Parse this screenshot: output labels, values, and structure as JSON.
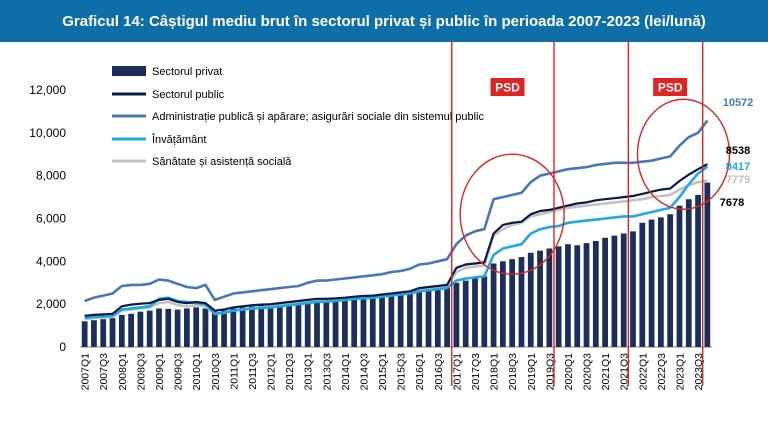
{
  "page": {
    "title": "Graficul 14: Câștigul mediu brut în sectorul privat și public în perioada 2007-2023 (lei/lună)"
  },
  "chart_data": {
    "type": "bar",
    "ylim": [
      0,
      12000
    ],
    "yticks": [
      0,
      2000,
      4000,
      6000,
      8000,
      10000,
      12000
    ],
    "ytick_labels": [
      "0",
      "2,000",
      "4,000",
      "6,000",
      "8,000",
      "10,000",
      "12,000"
    ],
    "categories": [
      "2007Q1",
      "2007Q2",
      "2007Q3",
      "2007Q4",
      "2008Q1",
      "2008Q2",
      "2008Q3",
      "2008Q4",
      "2009Q1",
      "2009Q2",
      "2009Q3",
      "2009Q4",
      "2010Q1",
      "2010Q2",
      "2010Q3",
      "2010Q4",
      "2011Q1",
      "2011Q2",
      "2011Q3",
      "2011Q4",
      "2012Q1",
      "2012Q2",
      "2012Q3",
      "2012Q4",
      "2013Q1",
      "2013Q2",
      "2013Q3",
      "2013Q4",
      "2014Q1",
      "2014Q2",
      "2014Q3",
      "2014Q4",
      "2015Q1",
      "2015Q2",
      "2015Q3",
      "2015Q4",
      "2016Q1",
      "2016Q2",
      "2016Q3",
      "2016Q4",
      "2017Q1",
      "2017Q2",
      "2017Q3",
      "2017Q4",
      "2018Q1",
      "2018Q2",
      "2018Q3",
      "2018Q4",
      "2019Q1",
      "2019Q2",
      "2019Q3",
      "2019Q4",
      "2020Q1",
      "2020Q2",
      "2020Q3",
      "2020Q4",
      "2021Q1",
      "2021Q2",
      "2021Q3",
      "2021Q4",
      "2022Q1",
      "2022Q2",
      "2022Q3",
      "2022Q4",
      "2023Q1",
      "2023Q2",
      "2023Q3",
      "2023Q4"
    ],
    "xtick_labels": [
      "2007Q1",
      "2007Q3",
      "2008Q1",
      "2008Q3",
      "2009Q1",
      "2009Q3",
      "2010Q1",
      "2010Q3",
      "2011Q1",
      "2011Q3",
      "2012Q1",
      "2012Q3",
      "2013Q1",
      "2013Q3",
      "2014Q1",
      "2014Q3",
      "2015Q1",
      "2015Q3",
      "2016Q1",
      "2016Q3",
      "2017Q1",
      "2017Q3",
      "2018Q1",
      "2018Q3",
      "2019Q1",
      "2019Q3",
      "2020Q1",
      "2020Q3",
      "2021Q1",
      "2021Q3",
      "2022Q1",
      "2022Q3",
      "2023Q1",
      "2023Q3"
    ],
    "series": [
      {
        "name": "Sectorul privat",
        "type": "bar",
        "color": "#1b2f5a",
        "values": [
          1200,
          1250,
          1300,
          1350,
          1500,
          1550,
          1650,
          1700,
          1800,
          1780,
          1750,
          1800,
          1850,
          1800,
          1650,
          1700,
          1800,
          1850,
          1900,
          1950,
          2000,
          2050,
          2100,
          2100,
          2150,
          2200,
          2250,
          2250,
          2300,
          2350,
          2380,
          2400,
          2450,
          2500,
          2550,
          2600,
          2700,
          2750,
          2800,
          2850,
          3000,
          3100,
          3200,
          3300,
          3900,
          4000,
          4100,
          4200,
          4400,
          4500,
          4600,
          4700,
          4800,
          4750,
          4850,
          4950,
          5100,
          5200,
          5300,
          5400,
          5800,
          5950,
          6050,
          6200,
          6600,
          6900,
          7100,
          7678
        ]
      },
      {
        "name": "Sectorul public",
        "type": "line",
        "color": "#0b1a4a",
        "values": [
          1450,
          1500,
          1520,
          1550,
          1900,
          1980,
          2020,
          2050,
          2200,
          2250,
          2100,
          2050,
          2100,
          2050,
          1700,
          1750,
          1850,
          1900,
          1950,
          1980,
          2000,
          2050,
          2100,
          2150,
          2200,
          2250,
          2250,
          2270,
          2300,
          2350,
          2380,
          2400,
          2450,
          2500,
          2550,
          2600,
          2750,
          2800,
          2850,
          2900,
          3700,
          3850,
          3900,
          3950,
          5300,
          5700,
          5800,
          5850,
          6200,
          6350,
          6400,
          6500,
          6600,
          6700,
          6750,
          6850,
          6900,
          6950,
          7000,
          7050,
          7150,
          7250,
          7350,
          7400,
          7750,
          8050,
          8300,
          8538
        ]
      },
      {
        "name": "Administrație publică și apărare; asigurări sociale din sistemul public",
        "type": "line",
        "color": "#4a77b4",
        "values": [
          2150,
          2300,
          2400,
          2500,
          2850,
          2900,
          2900,
          2950,
          3150,
          3100,
          2950,
          2800,
          2750,
          2900,
          2200,
          2350,
          2500,
          2550,
          2600,
          2650,
          2700,
          2750,
          2800,
          2850,
          3000,
          3100,
          3100,
          3150,
          3200,
          3250,
          3300,
          3350,
          3400,
          3500,
          3550,
          3650,
          3850,
          3900,
          4000,
          4100,
          4800,
          5200,
          5400,
          5500,
          6900,
          7000,
          7100,
          7200,
          7700,
          8000,
          8100,
          8200,
          8300,
          8350,
          8400,
          8500,
          8550,
          8600,
          8600,
          8600,
          8650,
          8700,
          8800,
          8900,
          9400,
          9800,
          10000,
          10572
        ]
      },
      {
        "name": "Învățământ",
        "type": "line",
        "color": "#1fa9e1",
        "values": [
          1350,
          1400,
          1420,
          1450,
          1750,
          1800,
          1850,
          1900,
          2250,
          2300,
          2150,
          2100,
          2050,
          2000,
          1550,
          1600,
          1700,
          1750,
          1800,
          1820,
          1850,
          1900,
          1950,
          2000,
          2050,
          2100,
          2120,
          2150,
          2200,
          2250,
          2270,
          2300,
          2350,
          2400,
          2450,
          2500,
          2600,
          2650,
          2700,
          2750,
          3100,
          3200,
          3250,
          3300,
          4300,
          4600,
          4700,
          4800,
          5300,
          5500,
          5600,
          5650,
          5800,
          5850,
          5900,
          5950,
          6000,
          6050,
          6100,
          6100,
          6200,
          6300,
          6400,
          6500,
          7000,
          7600,
          8100,
          8417
        ]
      },
      {
        "name": "Sănătate și asistență socială",
        "type": "line",
        "color": "#c2c2c2",
        "values": [
          1300,
          1350,
          1380,
          1400,
          1700,
          1750,
          1800,
          1850,
          2050,
          2100,
          1950,
          1900,
          1950,
          1900,
          1550,
          1600,
          1700,
          1750,
          1800,
          1850,
          1900,
          1950,
          2000,
          2050,
          2100,
          2150,
          2180,
          2200,
          2250,
          2300,
          2320,
          2350,
          2400,
          2450,
          2500,
          2550,
          2650,
          2700,
          2750,
          2800,
          3500,
          3700,
          3750,
          3800,
          5200,
          5500,
          5700,
          5800,
          6100,
          6200,
          6300,
          6400,
          6500,
          6550,
          6600,
          6650,
          6700,
          6750,
          6800,
          6850,
          6900,
          7000,
          7050,
          7100,
          7350,
          7550,
          7700,
          7779
        ]
      }
    ],
    "end_labels": [
      {
        "text": "10572",
        "color": "#4a77b4"
      },
      {
        "text": "8538",
        "color": "#000000"
      },
      {
        "text": "8417",
        "color": "#1fa9e1"
      },
      {
        "text": "7779",
        "color": "#c2c2c2"
      },
      {
        "text": "7678",
        "color": "#000000"
      }
    ],
    "annotations": {
      "psd_label": "PSD",
      "psd_periods": [
        {
          "start": "2017Q1",
          "end": "2019Q4"
        },
        {
          "start": "2021Q4",
          "end": "2023Q4"
        }
      ],
      "highlight_ellipses": [
        {
          "center_category": "2018Q3",
          "center_value": 6200
        },
        {
          "center_category": "2023Q1",
          "center_value": 9000
        }
      ]
    },
    "legend": {
      "placement": "top-left"
    },
    "grid": false
  }
}
